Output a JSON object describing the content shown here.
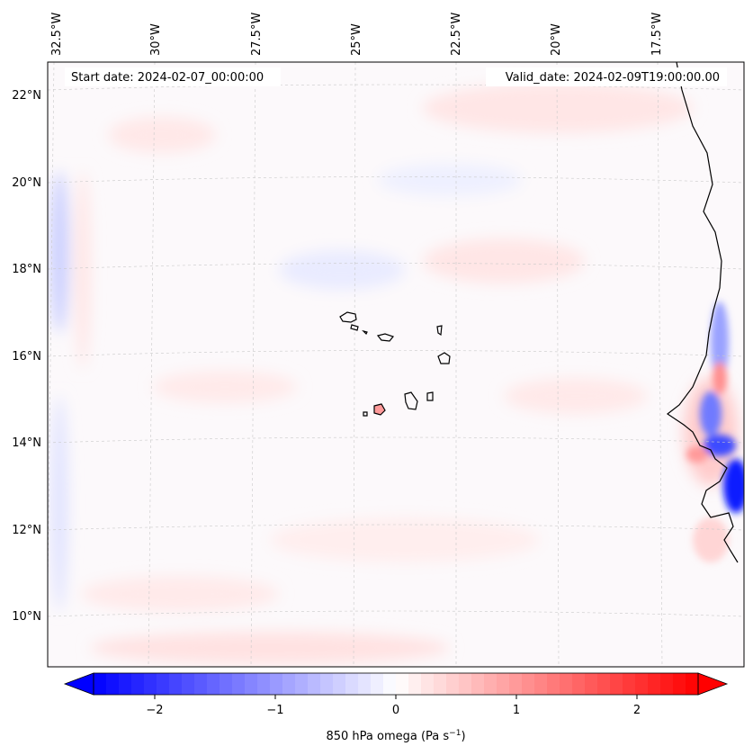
{
  "header": {
    "start_label": "Start date: 2024-02-07_00:00:00",
    "valid_label": "Valid_date: 2024-02-09T19:00:00.00"
  },
  "map": {
    "lon_labels": [
      "32.5°W",
      "30°W",
      "27.5°W",
      "25°W",
      "22.5°W",
      "20°W",
      "17.5°W"
    ],
    "lat_labels": [
      "22°N",
      "20°N",
      "18°N",
      "16°N",
      "14°N",
      "12°N",
      "10°N"
    ]
  },
  "colorbar": {
    "ticks": [
      "−2",
      "−1",
      "0",
      "1",
      "2"
    ],
    "label": "850 hPa omega (Pa s",
    "label_sup": "−1",
    "label_close": ")",
    "min": -2.6,
    "max": 2.6
  },
  "colors": {
    "negative": "#0000ff",
    "neutral": "#ffffff",
    "positive": "#ff0000",
    "coast": "#000000"
  }
}
